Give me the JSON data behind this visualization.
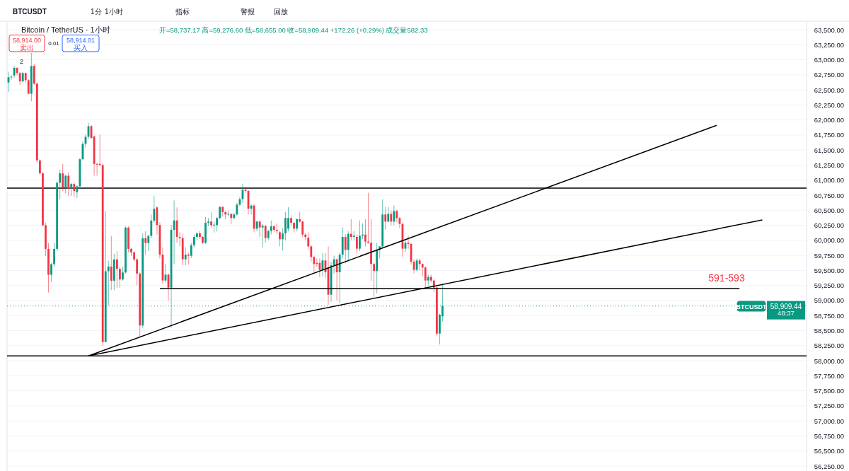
{
  "chart_data": {
    "type": "candlestick",
    "title": "Bitcoin / TetherUS · 1小时",
    "subtitle": "开=58,737.17 高=59,276.60 低=58,655.00 收=58,909.44 +172.26 (+0.29%) 成交量582.33",
    "categories": [
      null,
      null,
      null,
      null,
      null,
      null,
      null,
      null,
      null,
      null,
      null,
      null,
      null,
      null,
      null,
      null,
      null,
      null,
      null,
      null,
      null,
      null,
      null,
      null,
      null,
      null,
      null,
      null,
      null,
      null,
      null,
      null,
      null,
      null,
      null,
      null,
      null,
      null,
      null,
      null,
      null,
      null,
      null,
      null,
      null,
      null,
      null,
      null,
      null,
      null,
      null,
      null,
      null,
      null,
      null,
      null,
      null,
      null,
      null,
      null,
      null,
      null,
      null,
      null,
      null,
      null,
      null,
      null,
      null,
      null,
      null,
      null,
      null,
      null,
      null,
      null,
      null,
      null,
      null,
      null,
      null,
      null,
      null,
      null,
      null,
      null,
      null,
      null,
      null,
      null,
      null,
      null,
      null,
      null,
      null,
      null,
      null,
      null,
      null,
      null,
      null,
      null,
      null,
      null,
      null,
      null,
      null,
      null,
      null,
      null,
      null,
      null,
      null,
      null,
      null,
      null,
      null,
      null,
      null,
      null,
      null,
      null,
      null,
      null,
      null,
      null,
      null,
      null,
      null,
      null,
      null,
      null,
      null,
      null,
      null,
      null,
      null,
      null,
      null,
      null,
      null,
      null,
      null,
      null,
      null,
      null,
      null,
      null,
      null,
      null,
      null,
      null,
      null,
      null,
      null,
      null,
      null,
      null,
      null,
      null,
      null,
      null,
      null,
      null,
      null,
      null,
      null,
      null,
      null,
      null,
      null,
      null,
      null,
      null,
      null,
      null,
      null,
      null,
      null,
      null,
      null,
      null,
      null,
      null,
      null,
      null,
      null,
      null,
      null,
      null,
      null,
      null,
      null,
      null,
      null,
      null,
      null,
      null,
      null,
      null,
      null,
      null,
      null,
      null,
      null,
      null,
      null,
      null,
      null,
      null,
      null,
      null,
      null,
      null,
      null,
      null,
      null,
      null,
      null,
      null,
      null,
      null,
      null,
      null,
      null,
      null,
      null,
      null,
      null,
      null,
      null,
      null,
      null,
      null,
      null,
      null,
      null,
      null,
      null,
      null,
      null,
      null,
      null,
      null,
      null,
      null,
      null,
      null,
      null,
      null,
      null,
      null,
      null,
      null,
      null,
      null,
      null,
      null,
      null,
      null,
      null,
      null,
      null,
      null,
      null,
      null,
      null,
      null,
      null,
      null,
      null,
      null,
      null,
      null,
      null,
      null,
      null,
      null,
      null,
      null
    ],
    "ohlc": [
      [
        62623,
        62799,
        62466,
        62709
      ],
      [
        62709,
        62740,
        62662,
        62720
      ],
      [
        62740,
        62897,
        62701,
        62866
      ],
      [
        62866,
        62877,
        62740,
        62780
      ],
      [
        62780,
        62799,
        62583,
        62642
      ],
      [
        62642,
        62799,
        62623,
        62780
      ],
      [
        62780,
        62787,
        62623,
        62662
      ],
      [
        62662,
        62681,
        62427,
        62435
      ],
      [
        62435,
        63113,
        62309,
        62897
      ],
      [
        62897,
        62936,
        62583,
        62603
      ],
      [
        62603,
        62623,
        61290,
        61329
      ],
      [
        61329,
        61348,
        61094,
        61113
      ],
      [
        61113,
        61133,
        60231,
        60251
      ],
      [
        60251,
        60290,
        59741,
        59859
      ],
      [
        59859,
        59957,
        59134,
        59428
      ],
      [
        59428,
        59624,
        59310,
        59604
      ],
      [
        59604,
        59957,
        59565,
        59859
      ],
      [
        59859,
        60977,
        59820,
        60957
      ],
      [
        60957,
        61172,
        60682,
        61113
      ],
      [
        61113,
        61270,
        60820,
        60878
      ],
      [
        60878,
        61094,
        60780,
        61074
      ],
      [
        61074,
        61133,
        60741,
        60859
      ],
      [
        60859,
        60957,
        60741,
        60937
      ],
      [
        60937,
        60957,
        60721,
        60819
      ],
      [
        60800,
        60917,
        60702,
        60898
      ],
      [
        60898,
        61368,
        60859,
        61348
      ],
      [
        61348,
        61642,
        61329,
        61603
      ],
      [
        61603,
        61760,
        61544,
        61721
      ],
      [
        61721,
        61956,
        61682,
        61897
      ],
      [
        61897,
        61917,
        61682,
        61701
      ],
      [
        61729,
        61740,
        61074,
        61270
      ],
      [
        61270,
        61290,
        61074,
        61260
      ],
      [
        61270,
        61756,
        61250,
        61250
      ],
      [
        61250,
        61270,
        58252,
        58311
      ],
      [
        58311,
        60486,
        58311,
        59487
      ],
      [
        59487,
        59663,
        58919,
        59565
      ],
      [
        59565,
        60074,
        59173,
        59330
      ],
      [
        59330,
        59780,
        59173,
        59683
      ],
      [
        59683,
        59820,
        59212,
        59526
      ],
      [
        59526,
        59565,
        59212,
        59350
      ],
      [
        59350,
        59565,
        59330,
        59467
      ],
      [
        59467,
        60231,
        59448,
        60212
      ],
      [
        60212,
        60231,
        59800,
        59859
      ],
      [
        59859,
        59878,
        59741,
        59800
      ],
      [
        59800,
        59820,
        59643,
        59683
      ],
      [
        59683,
        59702,
        59252,
        59448
      ],
      [
        59448,
        59467,
        58389,
        58585
      ],
      [
        58585,
        60114,
        58546,
        60035
      ],
      [
        60035,
        60153,
        59761,
        59957
      ],
      [
        59957,
        60094,
        59820,
        60074
      ],
      [
        60074,
        60427,
        60035,
        60329
      ],
      [
        60329,
        60741,
        60290,
        60525
      ],
      [
        60547,
        60567,
        60096,
        60253
      ],
      [
        60253,
        60300,
        59700,
        59763
      ],
      [
        59763,
        59880,
        59274,
        59333
      ],
      [
        59333,
        59610,
        59300,
        59430
      ],
      [
        59430,
        59450,
        59000,
        59215
      ],
      [
        59215,
        60256,
        58550,
        60175
      ],
      [
        60175,
        60664,
        59606,
        60331
      ],
      [
        60331,
        60547,
        59959,
        60057
      ],
      [
        60057,
        60135,
        59900,
        60038
      ],
      [
        60038,
        60116,
        59587,
        59685
      ],
      [
        59685,
        59880,
        59587,
        59763
      ],
      [
        59763,
        59800,
        59600,
        59744
      ],
      [
        59744,
        59959,
        59705,
        59920
      ],
      [
        59920,
        60096,
        59880,
        60057
      ],
      [
        60057,
        60135,
        60000,
        60116
      ],
      [
        60116,
        60155,
        60020,
        60057
      ],
      [
        60057,
        60070,
        59940,
        59960
      ],
      [
        59960,
        60390,
        59940,
        60292
      ],
      [
        60292,
        60370,
        60240,
        60312
      ],
      [
        60312,
        60469,
        60215,
        60253
      ],
      [
        60253,
        60310,
        60130,
        60260
      ],
      [
        60253,
        60390,
        60145,
        60371
      ],
      [
        60371,
        60570,
        60350,
        60555
      ],
      [
        60555,
        60570,
        60400,
        60469
      ],
      [
        60469,
        60490,
        60350,
        60430
      ],
      [
        60430,
        60490,
        60400,
        60440
      ],
      [
        60440,
        60450,
        60273,
        60371
      ],
      [
        60371,
        60460,
        60350,
        60430
      ],
      [
        60430,
        60625,
        60410,
        60594
      ],
      [
        60594,
        60720,
        60570,
        60684
      ],
      [
        60684,
        60939,
        60620,
        60841
      ],
      [
        60841,
        60860,
        60790,
        60821
      ],
      [
        60821,
        60840,
        60430,
        60527
      ],
      [
        60527,
        60600,
        60430,
        60578
      ],
      [
        60578,
        60600,
        60135,
        60194
      ],
      [
        60194,
        60330,
        60150,
        60312
      ],
      [
        60312,
        60330,
        60057,
        60214
      ],
      [
        60214,
        60270,
        59881,
        60241
      ],
      [
        60241,
        60250,
        59960,
        60038
      ],
      [
        60038,
        60180,
        60000,
        60155
      ],
      [
        60155,
        60330,
        60100,
        60233
      ],
      [
        60233,
        60260,
        60135,
        60175
      ],
      [
        60175,
        60280,
        60100,
        60155
      ],
      [
        60135,
        60160,
        59900,
        60018
      ],
      [
        60018,
        60200,
        59830,
        60116
      ],
      [
        60116,
        60469,
        60000,
        60371
      ],
      [
        60194,
        60550,
        60150,
        60371
      ],
      [
        60371,
        60420,
        60250,
        60292
      ],
      [
        60292,
        60300,
        60130,
        60194
      ],
      [
        60194,
        60370,
        60150,
        60351
      ],
      [
        60351,
        60469,
        60290,
        60312
      ],
      [
        60312,
        60330,
        60057,
        60096
      ],
      [
        60096,
        60116,
        60000,
        60057
      ],
      [
        60045,
        60135,
        59860,
        59900
      ],
      [
        59900,
        59920,
        59640,
        59724
      ],
      [
        59724,
        59744,
        59470,
        59607
      ],
      [
        59626,
        59700,
        59550,
        59607
      ],
      [
        59626,
        59700,
        59390,
        59509
      ],
      [
        59509,
        59790,
        59400,
        59666
      ],
      [
        59666,
        59790,
        59370,
        59470
      ],
      [
        59548,
        59900,
        58930,
        59098
      ],
      [
        59098,
        59646,
        58980,
        59587
      ],
      [
        59587,
        59744,
        59450,
        59685
      ],
      [
        59685,
        59700,
        59000,
        59470
      ],
      [
        59470,
        59800,
        58960,
        59763
      ],
      [
        59763,
        60218,
        59700,
        60057
      ],
      [
        60057,
        60100,
        59620,
        59842
      ],
      [
        59842,
        60150,
        59650,
        60108
      ],
      [
        60108,
        60350,
        60000,
        60057
      ],
      [
        60057,
        60160,
        60000,
        60077
      ],
      [
        60057,
        60100,
        59780,
        59862
      ],
      [
        59862,
        60330,
        59820,
        60077
      ],
      [
        60077,
        60280,
        60020,
        60096
      ],
      [
        60096,
        60350,
        59900,
        59979
      ],
      [
        59979,
        60790,
        59950,
        59960
      ],
      [
        59960,
        60350,
        59330,
        59607
      ],
      [
        59607,
        59620,
        59060,
        59490
      ],
      [
        59490,
        59960,
        59120,
        59842
      ],
      [
        59842,
        59900,
        59700,
        59900
      ],
      [
        59900,
        60680,
        59880,
        60430
      ],
      [
        60430,
        60550,
        60180,
        60312
      ],
      [
        60312,
        60560,
        60300,
        60440
      ],
      [
        60440,
        60500,
        60250,
        60312
      ],
      [
        60312,
        60580,
        60250,
        60488
      ],
      [
        60488,
        60510,
        60300,
        60371
      ],
      [
        60371,
        60390,
        60200,
        60273
      ],
      [
        60273,
        60290,
        59730,
        59862
      ],
      [
        59862,
        60000,
        59800,
        59960
      ],
      [
        59960,
        60077,
        59860,
        59940
      ],
      [
        59940,
        59960,
        59600,
        59646
      ],
      [
        59646,
        59680,
        59450,
        59509
      ],
      [
        59509,
        59700,
        59480,
        59666
      ],
      [
        59666,
        59700,
        59500,
        59607
      ],
      [
        59607,
        59620,
        59400,
        59548
      ],
      [
        59548,
        59570,
        59200,
        59333
      ],
      [
        59333,
        59430,
        59250,
        59392
      ],
      [
        59392,
        59430,
        59300,
        59333
      ],
      [
        59333,
        59350,
        59140,
        59215
      ],
      [
        59215,
        59230,
        58420,
        58451
      ],
      [
        58451,
        58780,
        58270,
        58765
      ],
      [
        58737.17,
        59276.6,
        58655,
        58909.44
      ],
      null,
      null,
      null,
      null,
      null,
      null,
      null,
      null,
      null,
      null,
      null,
      null,
      null,
      null,
      null,
      null,
      null,
      null,
      null,
      null,
      null,
      null,
      null,
      null,
      null,
      null,
      null,
      null,
      null,
      null,
      null,
      null,
      null,
      null,
      null,
      null,
      null,
      null,
      null,
      null,
      null,
      null,
      null,
      null,
      null,
      null,
      null,
      null,
      null,
      null,
      null,
      null,
      null,
      null,
      null,
      null,
      null,
      null,
      null,
      null,
      null,
      null,
      null,
      null,
      null,
      null,
      null,
      null,
      null,
      null,
      null,
      null,
      null,
      null,
      null,
      null,
      null,
      null,
      null,
      null,
      null,
      null,
      null,
      null,
      null,
      null,
      null,
      null,
      null,
      null,
      null,
      null,
      null,
      null,
      null,
      null,
      null,
      null,
      null,
      null,
      null,
      null,
      null,
      null,
      null,
      null,
      null,
      null,
      null,
      null,
      null,
      null,
      null,
      null,
      null,
      null,
      null,
      null,
      null,
      null,
      null,
      null,
      null,
      null,
      null,
      null,
      null
    ],
    "colors": [
      "#089981",
      "#089981",
      "#089981",
      "#f23645",
      "#f23645",
      "#089981",
      "#f23645",
      "#f23645",
      "#089981",
      "#f23645",
      "#f23645",
      "#f23645",
      "#f23645",
      "#f23645",
      "#f23645",
      "#089981",
      "#089981",
      "#089981",
      "#089981",
      "#f23645",
      "#089981",
      "#f23645",
      "#089981",
      "#f23645",
      "#089981",
      "#089981",
      "#089981",
      "#089981",
      "#089981",
      "#f23645",
      "#f23645",
      "#f23645",
      "#f23645",
      "#f23645",
      "#089981",
      "#089981",
      "#f23645",
      "#089981",
      "#f23645",
      "#f23645",
      "#089981",
      "#089981",
      "#f23645",
      "#f23645",
      "#f23645",
      "#f23645",
      "#f23645",
      "#089981",
      "#f23645",
      "#089981",
      "#089981",
      "#089981",
      "#f23645",
      "#f23645",
      "#f23645",
      "#089981",
      "#f23645",
      "#089981",
      "#089981",
      "#f23645",
      "#f23645",
      "#f23645",
      "#089981",
      "#f23645",
      "#089981",
      "#089981",
      "#089981",
      "#f23645",
      "#f23645",
      "#089981",
      "#089981",
      "#f23645",
      "#089981",
      "#089981",
      "#089981",
      "#f23645",
      "#f23645",
      "#089981",
      "#f23645",
      "#089981",
      "#089981",
      "#089981",
      "#089981",
      "#f23645",
      "#f23645",
      "#089981",
      "#f23645",
      "#089981",
      "#f23645",
      "#089981",
      "#f23645",
      "#089981",
      "#089981",
      "#f23645",
      "#f23645",
      "#f23645",
      "#089981",
      "#089981",
      "#089981",
      "#f23645",
      "#f23645",
      "#089981",
      "#f23645",
      "#f23645",
      "#f23645",
      "#f23645",
      "#f23645",
      "#f23645",
      "#f23645",
      "#f23645",
      "#089981",
      "#f23645",
      "#f23645",
      "#089981",
      "#089981",
      "#f23645",
      "#089981",
      "#089981",
      "#f23645",
      "#089981",
      "#f23645",
      "#089981",
      "#f23645",
      "#089981",
      "#089981",
      "#f23645",
      "#f23645",
      "#f23645",
      "#f23645",
      "#089981",
      "#089981",
      "#089981",
      "#f23645",
      "#089981",
      "#f23645",
      "#089981",
      "#f23645",
      "#f23645",
      "#f23645",
      "#089981",
      "#f23645",
      "#f23645",
      "#f23645",
      "#089981",
      "#f23645",
      "#f23645",
      "#f23645",
      "#089981",
      "#f23645",
      "#f23645",
      "#f23645",
      "#089981",
      "#089981",
      null,
      null,
      null,
      null,
      null,
      null,
      null,
      null,
      null,
      null,
      null,
      null,
      null,
      null,
      null,
      null,
      null,
      null,
      null,
      null,
      null,
      null,
      null,
      null,
      null,
      null,
      null,
      null,
      null,
      null,
      null,
      null,
      null,
      null,
      null,
      null,
      null,
      null,
      null,
      null,
      null,
      null,
      null,
      null,
      null,
      null,
      null,
      null,
      null,
      null,
      null,
      null,
      null,
      null,
      null,
      null,
      null,
      null,
      null,
      null,
      null,
      null,
      null,
      null,
      null,
      null,
      null,
      null,
      null,
      null,
      null,
      null,
      null,
      null,
      null,
      null,
      null,
      null,
      null,
      null,
      null,
      null,
      null,
      null,
      null,
      null,
      null,
      null,
      null,
      null,
      null,
      null,
      null,
      null,
      null,
      null,
      null,
      null,
      null,
      null,
      null,
      null,
      null,
      null,
      null,
      null,
      null,
      null,
      null,
      null,
      null,
      null,
      null,
      null,
      null,
      null,
      null,
      null,
      null,
      null,
      null,
      null,
      null,
      null,
      null,
      null,
      null
    ],
    "series": [
      {
        "type": "line",
        "color": "#000000",
        "values": [
          null,
          null,
          null,
          null,
          null,
          null,
          null,
          null,
          null,
          null,
          null,
          null,
          null,
          null,
          null,
          null,
          null,
          null,
          null,
          null,
          null,
          null,
          null,
          null,
          null,
          null,
          null,
          null,
          58080,
          null,
          null,
          null,
          null,
          null,
          null,
          null,
          null,
          null,
          null,
          null,
          null,
          null,
          null,
          null,
          null,
          null,
          null,
          null,
          null,
          null,
          null,
          null,
          null,
          null,
          null,
          null,
          null,
          null,
          null,
          null,
          null,
          null,
          null,
          null,
          null,
          null,
          null,
          null,
          null,
          null,
          null,
          null,
          null,
          null,
          null,
          null,
          null,
          null,
          null,
          null,
          null,
          null,
          null,
          null,
          null,
          null,
          null,
          null,
          null,
          null,
          null,
          null,
          null,
          null,
          null,
          null,
          null,
          null,
          null,
          null,
          null,
          null,
          null,
          null,
          null,
          null,
          null,
          null,
          null,
          null,
          null,
          null,
          null,
          null,
          null,
          null,
          null,
          null,
          null,
          null,
          null,
          null,
          null,
          null,
          null,
          null,
          null,
          null,
          null,
          null,
          null,
          null,
          null,
          null,
          null,
          null,
          null,
          null,
          null,
          null,
          null,
          null,
          null,
          null,
          null,
          null,
          null,
          null,
          null,
          null,
          null,
          null,
          null,
          null,
          null,
          null,
          null,
          null,
          null,
          null,
          null,
          null,
          null,
          null,
          null,
          null,
          null,
          null,
          null,
          null,
          null,
          null,
          null,
          null,
          null,
          null,
          null,
          null,
          null,
          null,
          null,
          null,
          null,
          null,
          null,
          null,
          null,
          null,
          null,
          null,
          null,
          null,
          null,
          null,
          null,
          null,
          null,
          null,
          null,
          null,
          null,
          null,
          null,
          null,
          null,
          null,
          null,
          null,
          null,
          null,
          null,
          null,
          null,
          null,
          null,
          null,
          null,
          null,
          null,
          null,
          null,
          null,
          null,
          null,
          null,
          null,
          null,
          null,
          null,
          null,
          null,
          null,
          null,
          null,
          null,
          null,
          null,
          null,
          null,
          null,
          null,
          null,
          null,
          null,
          null,
          null,
          null,
          null,
          61910,
          null,
          null,
          null,
          null,
          null,
          null,
          null,
          null,
          null,
          null,
          null,
          null,
          null,
          null,
          null,
          null,
          null,
          null,
          null,
          null,
          null,
          null,
          null,
          null,
          null,
          null,
          null,
          null,
          null,
          null,
          null
        ]
      },
      {
        "type": "line",
        "color": "#000000",
        "values": [
          null,
          null,
          null,
          null,
          null,
          null,
          null,
          null,
          null,
          null,
          null,
          null,
          null,
          null,
          null,
          null,
          null,
          null,
          null,
          null,
          null,
          null,
          null,
          null,
          null,
          null,
          null,
          null,
          58080,
          null,
          null,
          null,
          null,
          null,
          null,
          null,
          null,
          null,
          null,
          null,
          null,
          null,
          null,
          null,
          null,
          null,
          null,
          null,
          null,
          null,
          null,
          null,
          null,
          null,
          null,
          null,
          null,
          null,
          null,
          null,
          null,
          null,
          null,
          null,
          null,
          null,
          null,
          null,
          null,
          null,
          null,
          null,
          null,
          null,
          null,
          null,
          null,
          null,
          null,
          null,
          null,
          null,
          null,
          null,
          null,
          null,
          null,
          null,
          null,
          null,
          null,
          null,
          null,
          null,
          null,
          null,
          null,
          null,
          null,
          null,
          null,
          null,
          null,
          null,
          null,
          null,
          null,
          null,
          null,
          null,
          null,
          null,
          null,
          null,
          null,
          null,
          null,
          null,
          null,
          null,
          null,
          null,
          null,
          null,
          null,
          null,
          null,
          null,
          null,
          null,
          null,
          null,
          null,
          null,
          null,
          null,
          null,
          null,
          null,
          null,
          null,
          null,
          null,
          null,
          null,
          null,
          null,
          null,
          null,
          null,
          null,
          null,
          null,
          null,
          null,
          null,
          null,
          null,
          null,
          null,
          null,
          null,
          null,
          null,
          null,
          null,
          null,
          null,
          null,
          null,
          null,
          null,
          null,
          null,
          null,
          null,
          null,
          null,
          null,
          null,
          null,
          null,
          null,
          null,
          null,
          null,
          null,
          null,
          null,
          null,
          null,
          null,
          null,
          null,
          null,
          null,
          null,
          null,
          null,
          null,
          null,
          null,
          null,
          null,
          null,
          null,
          null,
          null,
          null,
          null,
          null,
          null,
          null,
          null,
          null,
          null,
          null,
          null,
          null,
          null,
          null,
          null,
          null,
          null,
          null,
          null,
          null,
          null,
          null,
          null,
          null,
          null,
          null,
          null,
          null,
          null,
          null,
          null,
          null,
          null,
          null,
          null,
          null,
          null,
          null,
          null,
          null,
          null,
          null,
          null,
          null,
          null,
          null,
          null,
          null,
          null,
          null,
          null,
          null,
          null,
          null,
          null,
          null,
          null,
          60340,
          null,
          null,
          null,
          null,
          null,
          null,
          null,
          null,
          null,
          null,
          null,
          null,
          null,
          null,
          null
        ]
      },
      {
        "type": "line",
        "color": "#000000",
        "values": [
          null,
          null,
          null,
          null,
          null,
          null,
          null,
          null,
          null,
          null,
          null,
          null,
          null,
          null,
          null,
          null,
          null,
          null,
          null,
          null,
          null,
          null,
          null,
          null,
          null,
          null,
          null,
          null,
          null,
          null,
          null,
          null,
          null,
          null,
          null,
          null,
          null,
          null,
          null,
          null,
          null,
          null,
          null,
          null,
          null,
          null,
          null,
          null,
          null,
          null,
          null,
          null,
          null,
          59200,
          null,
          null,
          null,
          null,
          null,
          null,
          null,
          null,
          null,
          null,
          null,
          null,
          null,
          null,
          null,
          null,
          null,
          null,
          null,
          null,
          null,
          null,
          null,
          null,
          null,
          null,
          null,
          null,
          null,
          null,
          null,
          null,
          null,
          null,
          null,
          null,
          null,
          null,
          null,
          null,
          null,
          null,
          null,
          null,
          null,
          null,
          null,
          null,
          null,
          null,
          null,
          null,
          null,
          null,
          null,
          null,
          null,
          null,
          null,
          null,
          null,
          null,
          null,
          null,
          null,
          null,
          null,
          null,
          null,
          null,
          null,
          null,
          null,
          null,
          null,
          null,
          null,
          null,
          null,
          null,
          null,
          null,
          null,
          null,
          null,
          null,
          null,
          null,
          null,
          null,
          null,
          null,
          null,
          null,
          null,
          null,
          null,
          null,
          null,
          null,
          null,
          null,
          null,
          null,
          null,
          null,
          null,
          null,
          null,
          null,
          null,
          null,
          null,
          null,
          null,
          null,
          null,
          null,
          null,
          null,
          null,
          null,
          null,
          null,
          null,
          null,
          null,
          null,
          null,
          null,
          null,
          null,
          null,
          null,
          null,
          null,
          null,
          null,
          null,
          null,
          null,
          null,
          null,
          null,
          null,
          null,
          null,
          null,
          null,
          null,
          null,
          null,
          null,
          null,
          null,
          null,
          null,
          null,
          null,
          null,
          null,
          null,
          null,
          null,
          null,
          null,
          null,
          null,
          null,
          null,
          null,
          null,
          null,
          null,
          null,
          null,
          null,
          null,
          null,
          null,
          null,
          null,
          null,
          null,
          null,
          null,
          null,
          null,
          null,
          null,
          null,
          null,
          null,
          null,
          null,
          null,
          null,
          null,
          null,
          null,
          null,
          null,
          59200,
          null,
          null,
          null,
          null,
          null,
          null,
          null,
          null,
          null,
          null,
          null,
          null,
          null,
          null,
          null,
          null,
          null,
          null,
          null,
          null,
          null,
          null,
          null
        ]
      }
    ],
    "ref_lines": [
      {
        "axis": "y",
        "value": 60868,
        "color": "#000000",
        "line_style": "solid"
      },
      {
        "axis": "y",
        "value": 58080,
        "color": "#000000",
        "line_style": "solid"
      },
      {
        "axis": "y",
        "value": 58909.44,
        "label": "58,909.44",
        "color": "#089981",
        "line_style": "dotted"
      }
    ],
    "annotations": [
      "BTCUSDT",
      "1分",
      "1小时",
      "指标",
      "警报",
      "回放",
      "58,914.00",
      "卖出",
      "0.01",
      "58,914.01",
      "买入",
      "2",
      "591-593",
      "BTCUSDT",
      "48:37"
    ],
    "ylim": [
      56168,
      63641
    ],
    "yticks": [
      {
        "value": 63500,
        "label": "63,500.00"
      },
      {
        "value": 63250,
        "label": "63,250.00"
      },
      {
        "value": 63000,
        "label": "63,000.00"
      },
      {
        "value": 62750,
        "label": "62,750.00"
      },
      {
        "value": 62500,
        "label": "62,500.00"
      },
      {
        "value": 62250,
        "label": "62,250.00"
      },
      {
        "value": 62000,
        "label": "62,000.00"
      },
      {
        "value": 61750,
        "label": "61,750.00"
      },
      {
        "value": 61500,
        "label": "61,500.00"
      },
      {
        "value": 61250,
        "label": "61,250.00"
      },
      {
        "value": 61000,
        "label": "61,000.00"
      },
      {
        "value": 60750,
        "label": "60,750.00"
      },
      {
        "value": 60500,
        "label": "60,500.00"
      },
      {
        "value": 60250,
        "label": "60,250.00"
      },
      {
        "value": 60000,
        "label": "60,000.00"
      },
      {
        "value": 59750,
        "label": "59,750.00"
      },
      {
        "value": 59500,
        "label": "59,500.00"
      },
      {
        "value": 59250,
        "label": "59,250.00"
      },
      {
        "value": 59000,
        "label": "59,000.00"
      },
      {
        "value": 58750,
        "label": "58,750.00"
      },
      {
        "value": 58500,
        "label": "58,500.00"
      },
      {
        "value": 58250,
        "label": "58,250.00"
      },
      {
        "value": 58000,
        "label": "58,000.00"
      },
      {
        "value": 57750,
        "label": "57,750.00"
      },
      {
        "value": 57500,
        "label": "57,500.00"
      },
      {
        "value": 57250,
        "label": "57,250.00"
      },
      {
        "value": 57000,
        "label": "57,000.00"
      },
      {
        "value": 56750,
        "label": "56,750.00"
      },
      {
        "value": 56500,
        "label": "56,500.00"
      },
      {
        "value": 56250,
        "label": "56,250.00"
      }
    ],
    "tick_labels": "y",
    "grid": "y"
  }
}
